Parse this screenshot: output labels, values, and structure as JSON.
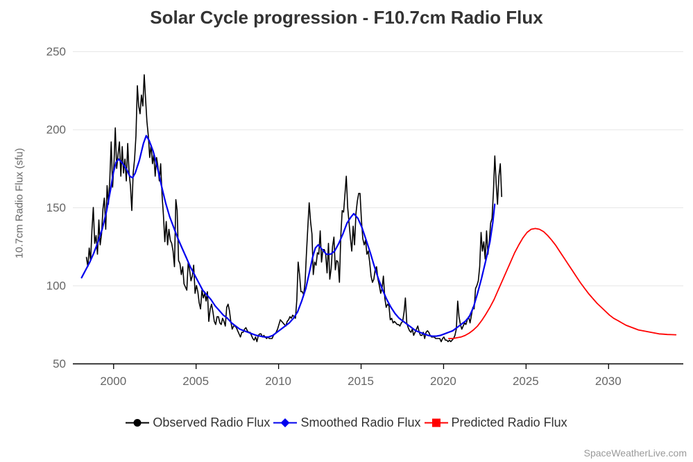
{
  "header": {
    "title": "Solar Cycle progression - F10.7cm Radio Flux"
  },
  "watermark": "SpaceWeatherLive.com",
  "colors": {
    "title": "#333333",
    "tick_label": "#666666",
    "axis_label": "#666666",
    "grid": "#e6e6e6",
    "axis_line": "#000000",
    "legend_text": "#333333",
    "watermark": "#999999",
    "background": "#ffffff",
    "observed": "#000000",
    "smoothed": "#0000ee",
    "predicted": "#ff0000"
  },
  "chart_data": {
    "type": "line",
    "title": "Solar Cycle progression - F10.7cm Radio Flux",
    "xlabel": "",
    "ylabel": "10.7cm Radio Flux (sfu)",
    "x_range": [
      1997.55,
      2034.55
    ],
    "ylim": [
      50,
      250
    ],
    "xticks": [
      2000,
      2005,
      2010,
      2015,
      2020,
      2025,
      2030
    ],
    "yticks": [
      50,
      100,
      150,
      200,
      250
    ],
    "grid": "horizontal-only",
    "legend_position": "bottom",
    "series": [
      {
        "name": "Observed Radio Flux",
        "color": "#000000",
        "marker": "circle",
        "width": 1.6,
        "start": 1998.375,
        "step": 0.0833333,
        "values": [
          118,
          112,
          124,
          116,
          135,
          150,
          127,
          132,
          120,
          142,
          126,
          133,
          149,
          156,
          136,
          164,
          152,
          168,
          192,
          163,
          178,
          201,
          175,
          184,
          192,
          170,
          189,
          172,
          181,
          167,
          191,
          172,
          164,
          148,
          172,
          181,
          196,
          228,
          215,
          210,
          222,
          215,
          235,
          220,
          205,
          196,
          182,
          190,
          178,
          184,
          170,
          182,
          176,
          167,
          178,
          158,
          145,
          128,
          141,
          126,
          136,
          129,
          127,
          122,
          112,
          155,
          148,
          116,
          114,
          107,
          112,
          101,
          99,
          97,
          115,
          110,
          103,
          106,
          113,
          95,
          100,
          96,
          89,
          85,
          97,
          92,
          95,
          90,
          96,
          77,
          85,
          88,
          83,
          77,
          75,
          80,
          80,
          76,
          75,
          79,
          77,
          74,
          86,
          88,
          84,
          77,
          72,
          74,
          74,
          73,
          71,
          69,
          67,
          70,
          70,
          72,
          73,
          71,
          70,
          70,
          68,
          66,
          65,
          67,
          64,
          68,
          69,
          69,
          67,
          68,
          67,
          66,
          67,
          66,
          66,
          66,
          68,
          69,
          70,
          72,
          75,
          78,
          77,
          76,
          75,
          74,
          77,
          78,
          80,
          79,
          81,
          80,
          79,
          91,
          115,
          107,
          96,
          96,
          94,
          102,
          120,
          137,
          153,
          141,
          133,
          107,
          115,
          113,
          121,
          120,
          135,
          115,
          123,
          123,
          120,
          108,
          127,
          104,
          111,
          125,
          131,
          110,
          116,
          115,
          102,
          132,
          148,
          147,
          158,
          170,
          150,
          140,
          130,
          122,
          138,
          126,
          146,
          154,
          159,
          159,
          142,
          130,
          126,
          129,
          120,
          122,
          115,
          106,
          102,
          104,
          110,
          112,
          104,
          100,
          95,
          98,
          106,
          92,
          86,
          88,
          87,
          78,
          79,
          76,
          77,
          76,
          75,
          75,
          74,
          76,
          77,
          83,
          92,
          76,
          73,
          71,
          70,
          72,
          68,
          70,
          72,
          74,
          70,
          68,
          68,
          70,
          66,
          70,
          71,
          70,
          68,
          67,
          67,
          67,
          66,
          66,
          66,
          66,
          64,
          66,
          67,
          65,
          65,
          64,
          65,
          64,
          65,
          66,
          68,
          72,
          90,
          80,
          75,
          72,
          74,
          76,
          75,
          78,
          80,
          76,
          81,
          86,
          85,
          98,
          100,
          103,
          112,
          134,
          122,
          128,
          117,
          135,
          120,
          128,
          140,
          143,
          160,
          183,
          165,
          152,
          170,
          178,
          157
        ]
      },
      {
        "name": "Smoothed Radio Flux",
        "color": "#0000ee",
        "marker": "diamond",
        "width": 2.2,
        "points": [
          [
            1998.08,
            105
          ],
          [
            1998.33,
            110
          ],
          [
            1998.58,
            115
          ],
          [
            1998.83,
            121
          ],
          [
            1999.08,
            128
          ],
          [
            1999.33,
            136
          ],
          [
            1999.58,
            147
          ],
          [
            1999.83,
            161
          ],
          [
            2000.0,
            172
          ],
          [
            2000.17,
            179
          ],
          [
            2000.33,
            181
          ],
          [
            2000.58,
            178
          ],
          [
            2000.83,
            174
          ],
          [
            2001.0,
            170
          ],
          [
            2001.17,
            169
          ],
          [
            2001.33,
            172
          ],
          [
            2001.58,
            180
          ],
          [
            2001.83,
            191
          ],
          [
            2002.0,
            196
          ],
          [
            2002.17,
            193
          ],
          [
            2002.42,
            186
          ],
          [
            2002.67,
            176
          ],
          [
            2002.92,
            164
          ],
          [
            2003.17,
            153
          ],
          [
            2003.42,
            144
          ],
          [
            2003.67,
            137
          ],
          [
            2003.92,
            130
          ],
          [
            2004.17,
            124
          ],
          [
            2004.42,
            118
          ],
          [
            2004.67,
            112
          ],
          [
            2004.92,
            107
          ],
          [
            2005.17,
            102
          ],
          [
            2005.42,
            97
          ],
          [
            2005.67,
            94
          ],
          [
            2005.92,
            91
          ],
          [
            2006.17,
            87
          ],
          [
            2006.42,
            84
          ],
          [
            2006.67,
            81
          ],
          [
            2006.92,
            79
          ],
          [
            2007.17,
            76
          ],
          [
            2007.42,
            74
          ],
          [
            2007.67,
            72
          ],
          [
            2007.92,
            71
          ],
          [
            2008.17,
            70
          ],
          [
            2008.42,
            69
          ],
          [
            2008.67,
            68
          ],
          [
            2008.92,
            67.5
          ],
          [
            2009.17,
            67
          ],
          [
            2009.42,
            67
          ],
          [
            2009.67,
            68
          ],
          [
            2009.92,
            70
          ],
          [
            2010.17,
            72
          ],
          [
            2010.42,
            74
          ],
          [
            2010.67,
            76
          ],
          [
            2010.92,
            79
          ],
          [
            2011.17,
            83
          ],
          [
            2011.42,
            90
          ],
          [
            2011.67,
            98
          ],
          [
            2011.92,
            110
          ],
          [
            2012.08,
            118
          ],
          [
            2012.25,
            124
          ],
          [
            2012.42,
            126
          ],
          [
            2012.67,
            123
          ],
          [
            2012.92,
            120
          ],
          [
            2013.17,
            120
          ],
          [
            2013.42,
            122
          ],
          [
            2013.67,
            127
          ],
          [
            2013.92,
            133
          ],
          [
            2014.17,
            140
          ],
          [
            2014.42,
            144
          ],
          [
            2014.58,
            146
          ],
          [
            2014.83,
            143
          ],
          [
            2015.08,
            137
          ],
          [
            2015.33,
            129
          ],
          [
            2015.58,
            121
          ],
          [
            2015.83,
            112
          ],
          [
            2016.08,
            104
          ],
          [
            2016.33,
            97
          ],
          [
            2016.58,
            91
          ],
          [
            2016.83,
            86
          ],
          [
            2017.08,
            82
          ],
          [
            2017.33,
            79
          ],
          [
            2017.58,
            77
          ],
          [
            2017.83,
            75
          ],
          [
            2018.08,
            73
          ],
          [
            2018.33,
            71
          ],
          [
            2018.58,
            70
          ],
          [
            2018.83,
            69
          ],
          [
            2019.08,
            68
          ],
          [
            2019.33,
            67.5
          ],
          [
            2019.58,
            67.5
          ],
          [
            2019.83,
            68
          ],
          [
            2020.08,
            69
          ],
          [
            2020.33,
            70
          ],
          [
            2020.58,
            71
          ],
          [
            2020.83,
            73
          ],
          [
            2021.08,
            75
          ],
          [
            2021.33,
            77
          ],
          [
            2021.58,
            80
          ],
          [
            2021.83,
            86
          ],
          [
            2022.08,
            95
          ],
          [
            2022.33,
            105
          ],
          [
            2022.58,
            116
          ],
          [
            2022.83,
            128
          ],
          [
            2023.0,
            140
          ],
          [
            2023.12,
            152
          ]
        ]
      },
      {
        "name": "Predicted Radio Flux",
        "color": "#ff0000",
        "marker": "square",
        "width": 1.8,
        "points": [
          [
            2020.33,
            66
          ],
          [
            2020.58,
            66
          ],
          [
            2020.83,
            66.5
          ],
          [
            2021.08,
            67
          ],
          [
            2021.33,
            68
          ],
          [
            2021.58,
            69.5
          ],
          [
            2021.83,
            71.5
          ],
          [
            2022.08,
            74
          ],
          [
            2022.33,
            77.5
          ],
          [
            2022.58,
            81.5
          ],
          [
            2022.83,
            86
          ],
          [
            2023.08,
            91
          ],
          [
            2023.33,
            97
          ],
          [
            2023.58,
            103
          ],
          [
            2023.83,
            109
          ],
          [
            2024.08,
            115
          ],
          [
            2024.33,
            121
          ],
          [
            2024.58,
            126
          ],
          [
            2024.83,
            130.5
          ],
          [
            2025.08,
            134
          ],
          [
            2025.33,
            136
          ],
          [
            2025.58,
            136.5
          ],
          [
            2025.83,
            136
          ],
          [
            2026.08,
            134.5
          ],
          [
            2026.33,
            132
          ],
          [
            2026.58,
            129
          ],
          [
            2026.83,
            125.5
          ],
          [
            2027.08,
            121.5
          ],
          [
            2027.33,
            117.5
          ],
          [
            2027.58,
            113.5
          ],
          [
            2027.83,
            109.5
          ],
          [
            2028.08,
            105.5
          ],
          [
            2028.33,
            101.5
          ],
          [
            2028.58,
            98
          ],
          [
            2028.83,
            94.5
          ],
          [
            2029.08,
            91.5
          ],
          [
            2029.33,
            88.5
          ],
          [
            2029.58,
            86
          ],
          [
            2029.83,
            83.5
          ],
          [
            2030.08,
            81
          ],
          [
            2030.33,
            79
          ],
          [
            2030.58,
            77.5
          ],
          [
            2030.83,
            76
          ],
          [
            2031.08,
            74.5
          ],
          [
            2031.33,
            73.5
          ],
          [
            2031.58,
            72.5
          ],
          [
            2031.83,
            71.5
          ],
          [
            2032.08,
            71
          ],
          [
            2032.33,
            70.5
          ],
          [
            2032.58,
            70
          ],
          [
            2032.83,
            69.5
          ],
          [
            2033.08,
            69
          ],
          [
            2033.33,
            68.8
          ],
          [
            2033.58,
            68.6
          ],
          [
            2033.83,
            68.5
          ],
          [
            2034.1,
            68.4
          ]
        ]
      }
    ]
  }
}
